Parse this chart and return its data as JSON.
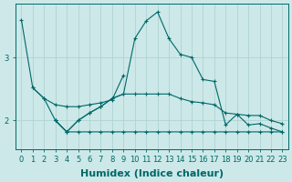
{
  "background_color": "#cce8e8",
  "line_color": "#006868",
  "grid_color": "#aacfcf",
  "xlabel": "Humidex (Indice chaleur)",
  "xlabel_fontsize": 8,
  "tick_fontsize": 6,
  "yticks": [
    2,
    3
  ],
  "xlim": [
    -0.5,
    23.5
  ],
  "ylim": [
    1.55,
    3.85
  ],
  "line_a_x": [
    0,
    1,
    2,
    3,
    4,
    5,
    6,
    7,
    8,
    9
  ],
  "line_a_y": [
    3.6,
    2.52,
    2.35,
    2.25,
    2.22,
    2.22,
    2.25,
    2.28,
    2.33,
    2.72
  ],
  "line_b_x": [
    1,
    2,
    3,
    4,
    5,
    6,
    7,
    8,
    9,
    10,
    11,
    12,
    13,
    14,
    15,
    16,
    17,
    18,
    19,
    20,
    21,
    22,
    23
  ],
  "line_b_y": [
    2.52,
    2.35,
    2.0,
    1.82,
    2.0,
    2.12,
    2.22,
    2.35,
    2.42,
    3.3,
    3.58,
    3.72,
    3.3,
    3.05,
    3.0,
    2.65,
    2.62,
    1.93,
    2.1,
    1.93,
    1.95,
    1.88,
    1.82
  ],
  "line_c_x": [
    3,
    4,
    5,
    6,
    7,
    8,
    9,
    10,
    11,
    12,
    13,
    14,
    15,
    16,
    17,
    18,
    19,
    20,
    21,
    22,
    23
  ],
  "line_c_y": [
    2.0,
    1.82,
    2.0,
    2.12,
    2.22,
    2.35,
    2.42,
    2.42,
    2.42,
    2.42,
    2.42,
    2.35,
    2.3,
    2.28,
    2.25,
    2.12,
    2.1,
    2.08,
    2.08,
    2.0,
    1.95
  ],
  "line_d_x": [
    3,
    4,
    5,
    6,
    7,
    8,
    9,
    10,
    11,
    12,
    13,
    14,
    15,
    16,
    17,
    18,
    19,
    20,
    21,
    22,
    23
  ],
  "line_d_y": [
    2.0,
    1.82,
    1.82,
    1.82,
    1.82,
    1.82,
    1.82,
    1.82,
    1.82,
    1.82,
    1.82,
    1.82,
    1.82,
    1.82,
    1.82,
    1.82,
    1.82,
    1.82,
    1.82,
    1.82,
    1.82
  ]
}
